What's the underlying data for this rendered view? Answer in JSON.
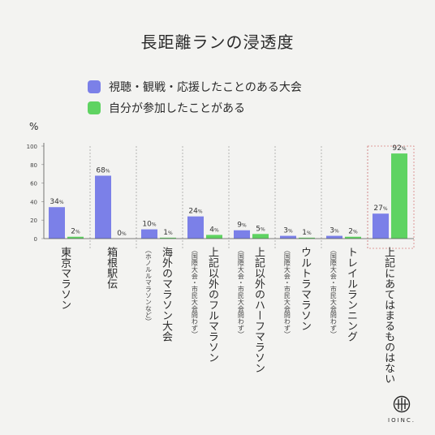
{
  "chart_data": {
    "type": "bar",
    "title": "長距離ランの浸透度",
    "unit": "%",
    "ylim": [
      0,
      100
    ],
    "yticks": [
      0,
      20,
      40,
      60,
      80,
      100
    ],
    "series": [
      {
        "name": "視聴・観戦・応援したことのある大会",
        "color": "#7b80e8",
        "values": [
          34,
          68,
          10,
          24,
          9,
          3,
          3,
          27
        ]
      },
      {
        "name": "自分が参加したことがある",
        "color": "#5fd362",
        "values": [
          2,
          0,
          1,
          4,
          5,
          1,
          2,
          92
        ]
      }
    ],
    "categories": [
      {
        "label": "東京マラソン",
        "sub": ""
      },
      {
        "label": "箱根駅伝",
        "sub": ""
      },
      {
        "label": "海外のマラソン大会",
        "sub": "（ホノルルマラソンなど）"
      },
      {
        "label": "上記以外のフルマラソン",
        "sub": "（国際大会・市民大会問わず）"
      },
      {
        "label": "上記以外のハーフマラソン",
        "sub": "（国際大会・市民大会問わず）"
      },
      {
        "label": "ウルトラマラソン",
        "sub": "（国際大会・市民大会問わず）"
      },
      {
        "label": "トレイルランニング",
        "sub": "（国際大会・市民大会問わず）"
      },
      {
        "label": "上記にあてはまるものはない",
        "sub": ""
      }
    ],
    "highlight_last": true
  },
  "brand": {
    "name": "IOINC."
  }
}
